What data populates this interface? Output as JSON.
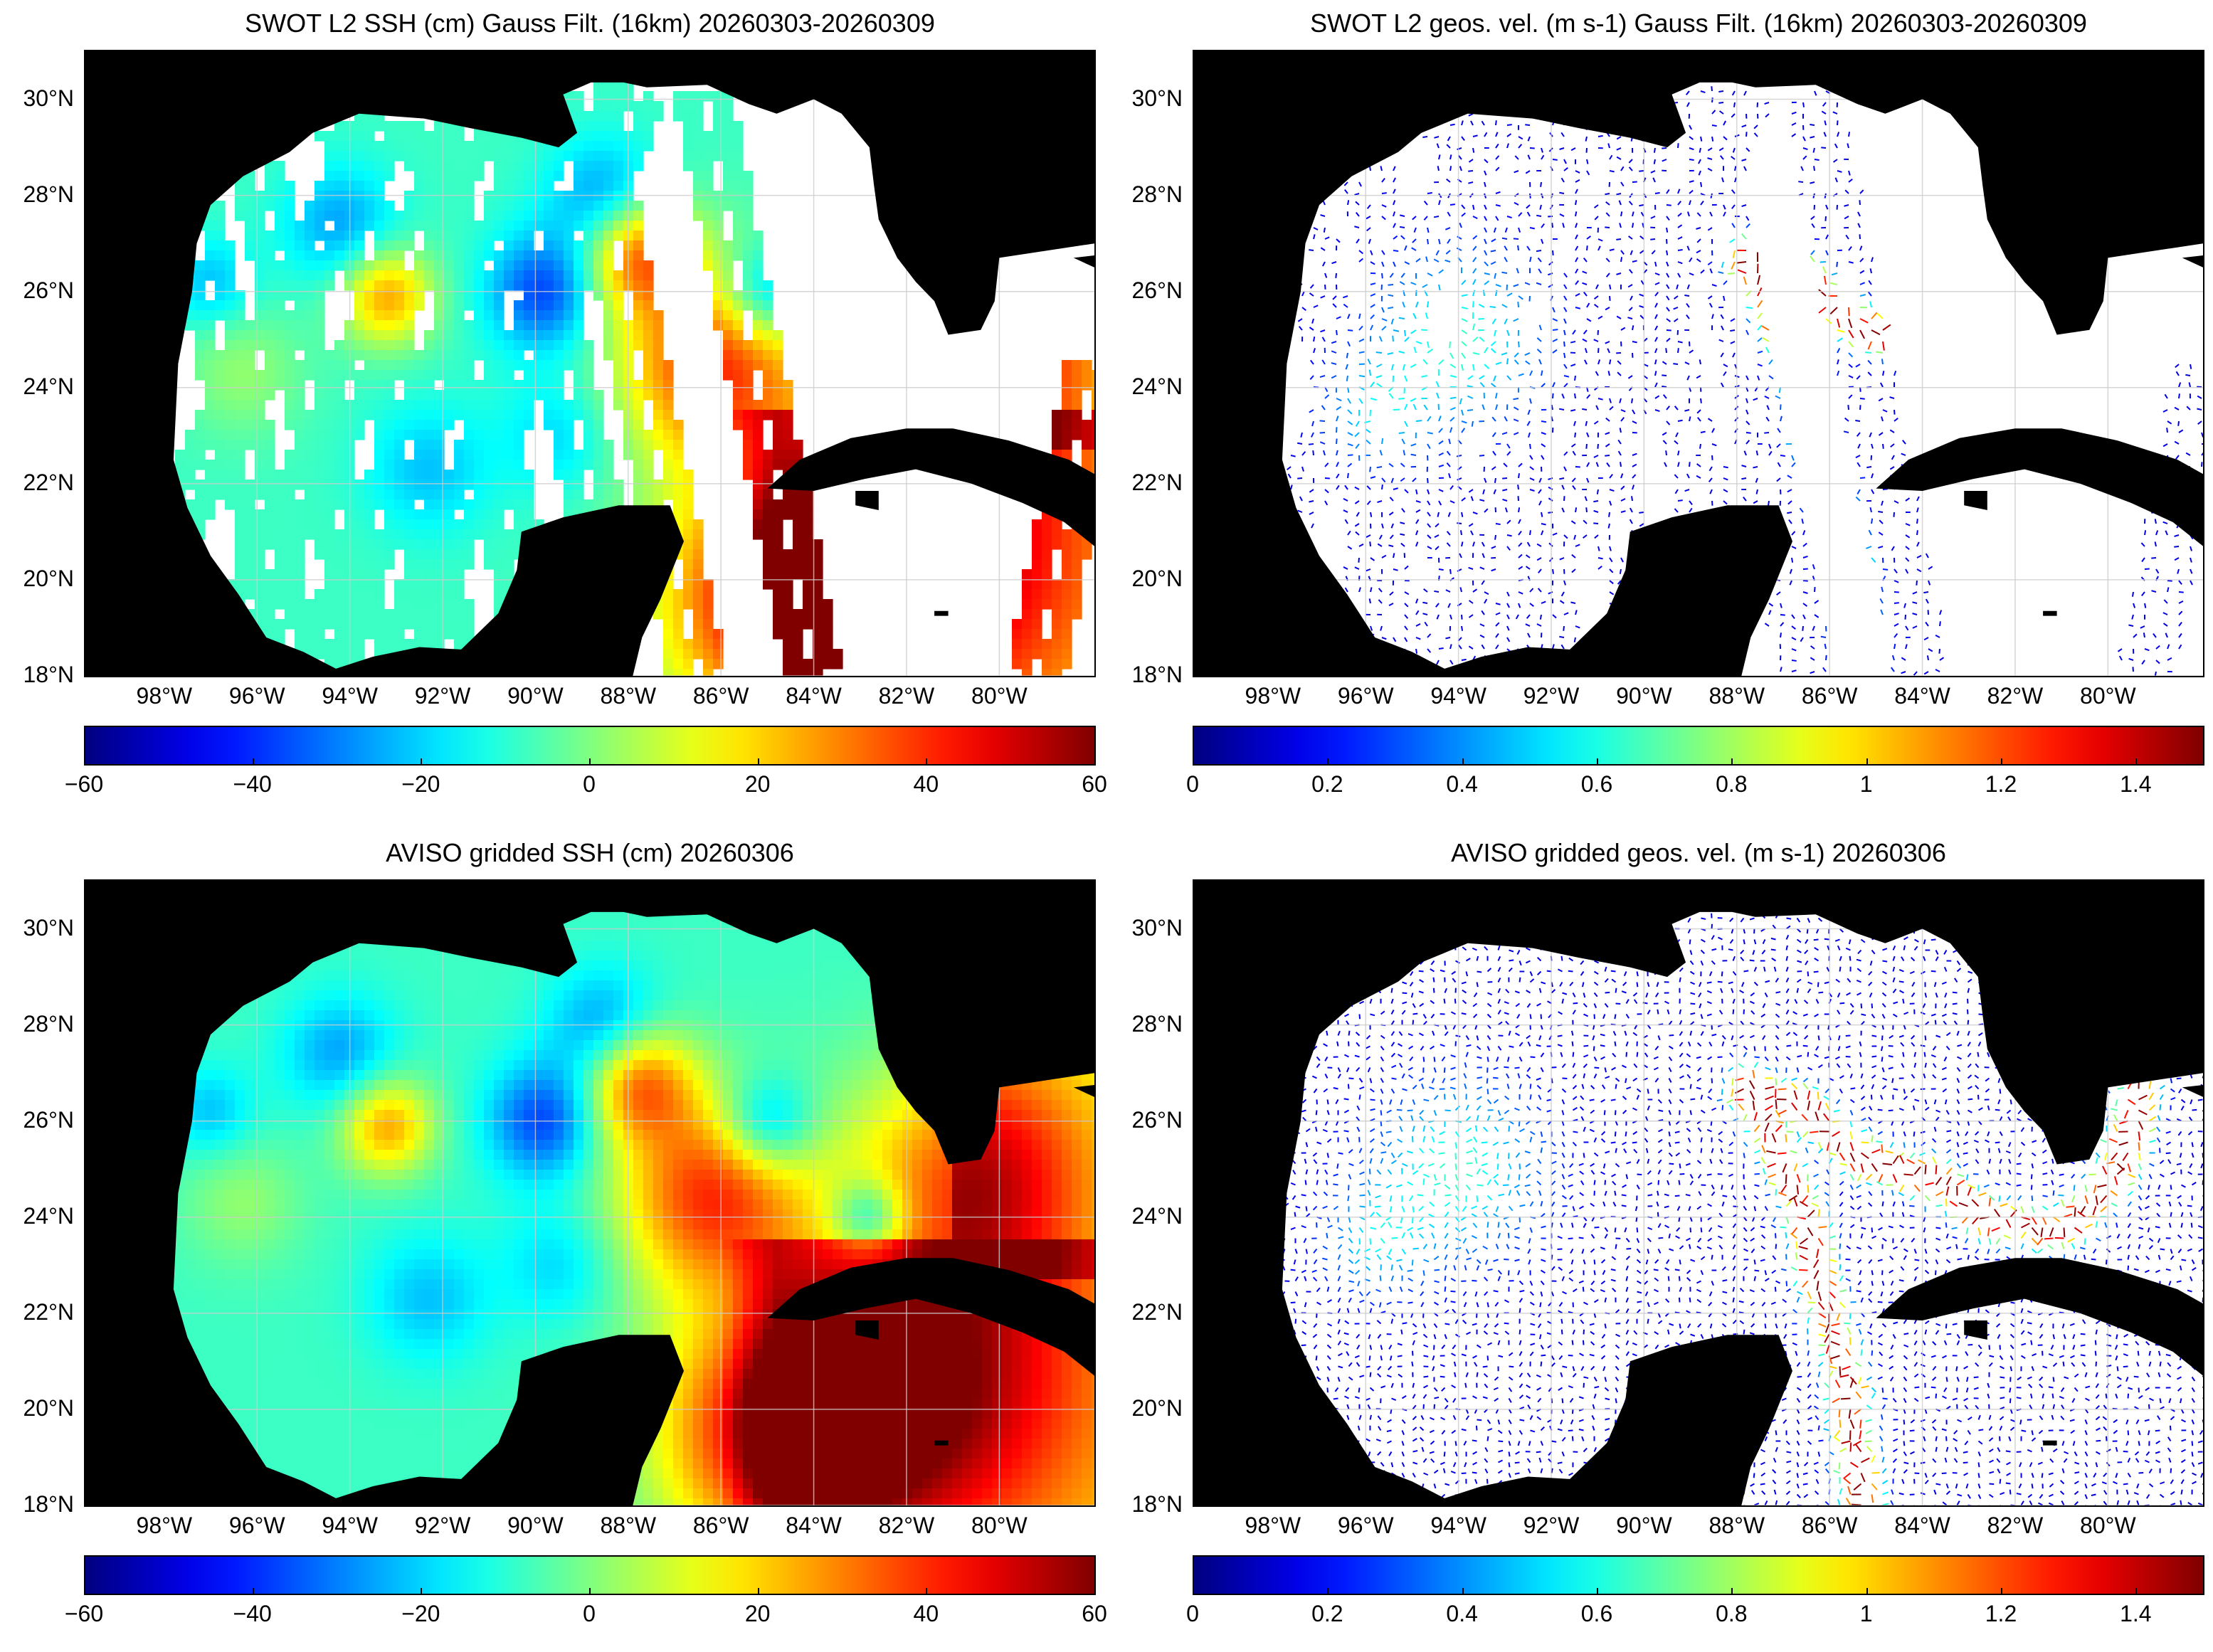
{
  "panels": [
    {
      "id": "swot-ssh",
      "title": "SWOT L2 SSH (cm) Gauss Filt. (16km) 20260303-20260309",
      "kind": "swath-ssh",
      "colorbar": {
        "min": -60,
        "max": 60,
        "ticks": [
          "−60",
          "−40",
          "−20",
          "0",
          "20",
          "40",
          "60"
        ]
      }
    },
    {
      "id": "swot-vel",
      "title": "SWOT L2 geos. vel. (m s-1) Gauss Filt. (16km) 20260303-20260309",
      "kind": "swath-vel",
      "colorbar": {
        "min": 0,
        "max": 1.5,
        "ticks": [
          "0",
          "0.2",
          "0.4",
          "0.6",
          "0.8",
          "1",
          "1.2",
          "1.4"
        ]
      }
    },
    {
      "id": "aviso-ssh",
      "title": "AVISO gridded SSH (cm) 20260306",
      "kind": "grid-ssh",
      "colorbar": {
        "min": -60,
        "max": 60,
        "ticks": [
          "−60",
          "−40",
          "−20",
          "0",
          "20",
          "40",
          "60"
        ]
      }
    },
    {
      "id": "aviso-vel",
      "title": "AVISO gridded geos. vel. (m s-1)  20260306",
      "kind": "grid-vel",
      "colorbar": {
        "min": 0,
        "max": 1.5,
        "ticks": [
          "0",
          "0.2",
          "0.4",
          "0.6",
          "0.8",
          "1",
          "1.2",
          "1.4"
        ]
      }
    }
  ],
  "axes": {
    "lat_labels": [
      "30°N",
      "28°N",
      "26°N",
      "24°N",
      "22°N",
      "20°N",
      "18°N"
    ],
    "lon_labels": [
      "98°W",
      "96°W",
      "94°W",
      "92°W",
      "90°W",
      "88°W",
      "86°W",
      "84°W",
      "82°W",
      "80°W"
    ]
  },
  "colors": {
    "land": "#000000",
    "no_data": "#ffffff",
    "grid": "#cccccc",
    "colormap": "jet"
  }
}
